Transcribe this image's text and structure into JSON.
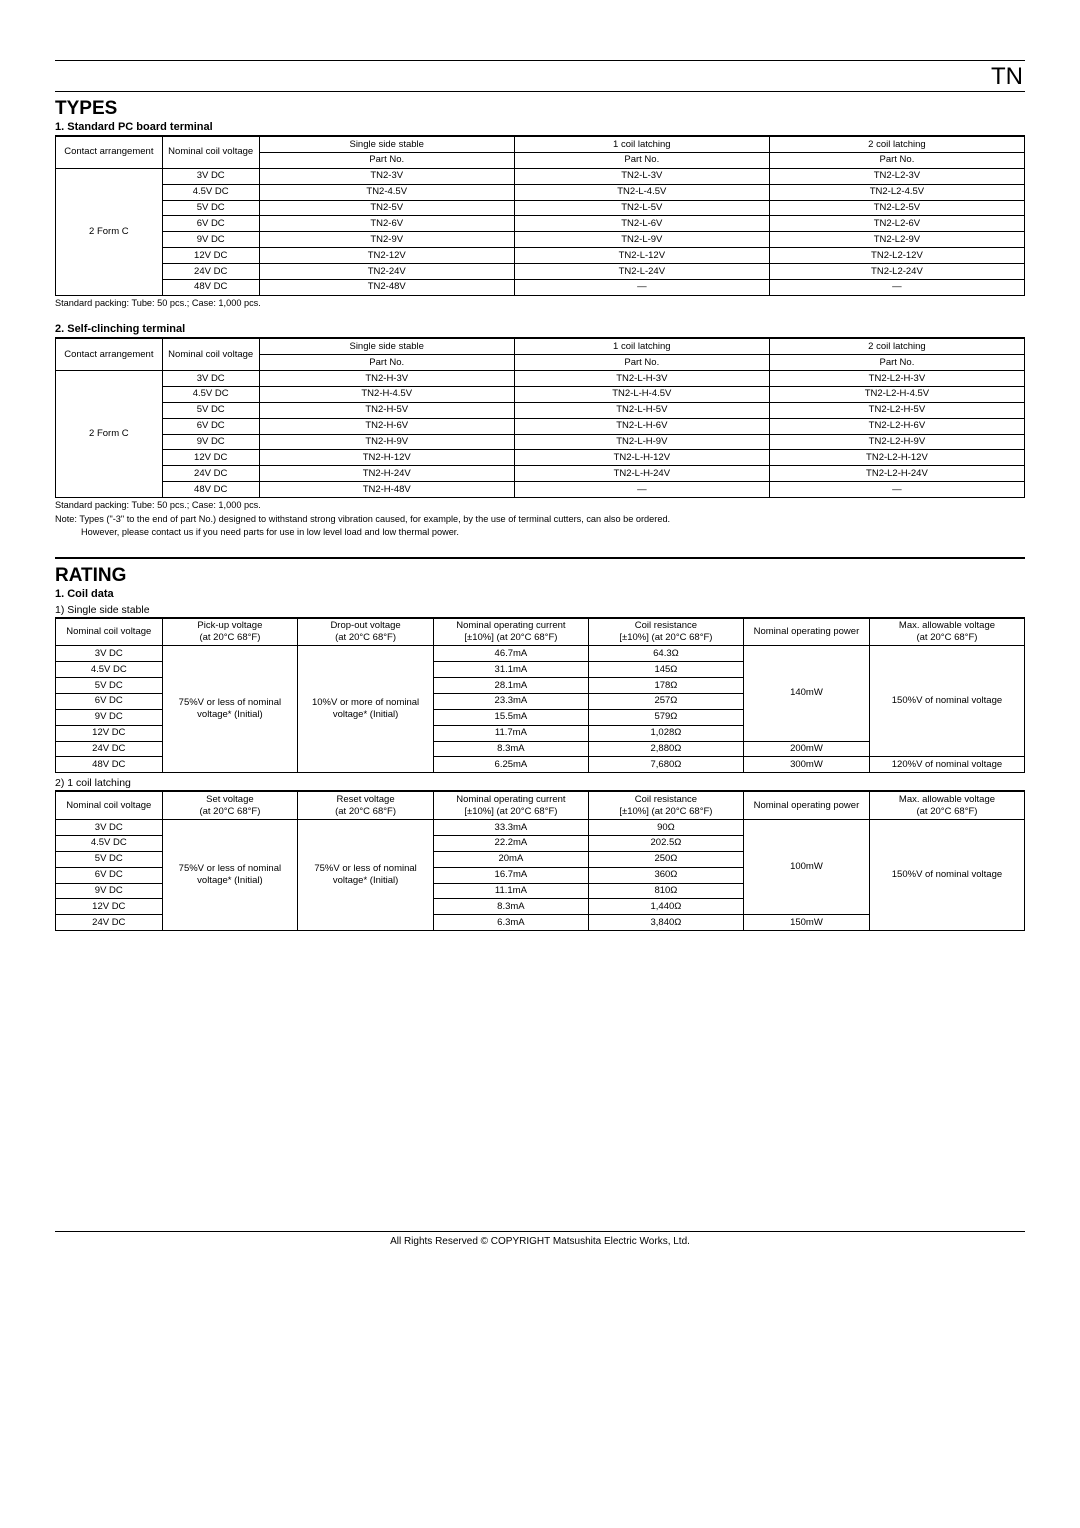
{
  "header": {
    "product": "TN"
  },
  "types": {
    "title": "TYPES",
    "tables": [
      {
        "subtitle": "1. Standard PC board terminal",
        "cols": {
          "arrangement": "Contact arrangement",
          "voltage": "Nominal coil voltage",
          "single": "Single side stable",
          "coil1": "1 coil latching",
          "coil2": "2 coil latching",
          "partno": "Part No."
        },
        "arrangement": "2 Form C",
        "rows": [
          {
            "v": "3V DC",
            "s": "TN2-3V",
            "c1": "TN2-L-3V",
            "c2": "TN2-L2-3V"
          },
          {
            "v": "4.5V DC",
            "s": "TN2-4.5V",
            "c1": "TN2-L-4.5V",
            "c2": "TN2-L2-4.5V"
          },
          {
            "v": "5V DC",
            "s": "TN2-5V",
            "c1": "TN2-L-5V",
            "c2": "TN2-L2-5V"
          },
          {
            "v": "6V DC",
            "s": "TN2-6V",
            "c1": "TN2-L-6V",
            "c2": "TN2-L2-6V"
          },
          {
            "v": "9V DC",
            "s": "TN2-9V",
            "c1": "TN2-L-9V",
            "c2": "TN2-L2-9V"
          },
          {
            "v": "12V DC",
            "s": "TN2-12V",
            "c1": "TN2-L-12V",
            "c2": "TN2-L2-12V"
          },
          {
            "v": "24V DC",
            "s": "TN2-24V",
            "c1": "TN2-L-24V",
            "c2": "TN2-L2-24V"
          },
          {
            "v": "48V DC",
            "s": "TN2-48V",
            "c1": "—",
            "c2": "—"
          }
        ],
        "packing": "Standard packing: Tube: 50 pcs.; Case: 1,000 pcs."
      },
      {
        "subtitle": "2. Self-clinching terminal",
        "cols": {
          "arrangement": "Contact arrangement",
          "voltage": "Nominal coil voltage",
          "single": "Single side stable",
          "coil1": "1 coil latching",
          "coil2": "2 coil latching",
          "partno": "Part No."
        },
        "arrangement": "2 Form C",
        "rows": [
          {
            "v": "3V DC",
            "s": "TN2-H-3V",
            "c1": "TN2-L-H-3V",
            "c2": "TN2-L2-H-3V"
          },
          {
            "v": "4.5V DC",
            "s": "TN2-H-4.5V",
            "c1": "TN2-L-H-4.5V",
            "c2": "TN2-L2-H-4.5V"
          },
          {
            "v": "5V DC",
            "s": "TN2-H-5V",
            "c1": "TN2-L-H-5V",
            "c2": "TN2-L2-H-5V"
          },
          {
            "v": "6V DC",
            "s": "TN2-H-6V",
            "c1": "TN2-L-H-6V",
            "c2": "TN2-L2-H-6V"
          },
          {
            "v": "9V DC",
            "s": "TN2-H-9V",
            "c1": "TN2-L-H-9V",
            "c2": "TN2-L2-H-9V"
          },
          {
            "v": "12V DC",
            "s": "TN2-H-12V",
            "c1": "TN2-L-H-12V",
            "c2": "TN2-L2-H-12V"
          },
          {
            "v": "24V DC",
            "s": "TN2-H-24V",
            "c1": "TN2-L-H-24V",
            "c2": "TN2-L2-H-24V"
          },
          {
            "v": "48V DC",
            "s": "TN2-H-48V",
            "c1": "—",
            "c2": "—"
          }
        ],
        "packing": "Standard packing: Tube: 50 pcs.; Case: 1,000 pcs.",
        "note1": "Note: Types (\"-3\" to the end of part No.) designed to withstand strong vibration caused, for example, by the use of terminal cutters, can also be ordered.",
        "note2": "However, please contact us if you need parts for use in low level load and low thermal power."
      }
    ]
  },
  "rating": {
    "title": "RATING",
    "coil_title": "1. Coil data",
    "stable": {
      "subtitle": "1) Single side stable",
      "headers": {
        "v": "Nominal coil voltage",
        "pickup": "Pick-up voltage\n(at 20°C 68°F)",
        "dropout": "Drop-out voltage\n(at 20°C 68°F)",
        "current": "Nominal operating current\n[±10%] (at 20°C 68°F)",
        "res": "Coil resistance\n[±10%] (at 20°C 68°F)",
        "power": "Nominal operating power",
        "max": "Max. allowable voltage\n(at 20°C 68°F)"
      },
      "pickup_val": "75%V or less of nominal voltage* (Initial)",
      "dropout_val": "10%V or more of nominal voltage* (Initial)",
      "rows": [
        {
          "v": "3V DC",
          "i": "46.7mA",
          "r": "64.3Ω"
        },
        {
          "v": "4.5V DC",
          "i": "31.1mA",
          "r": "145Ω"
        },
        {
          "v": "5V DC",
          "i": "28.1mA",
          "r": "178Ω"
        },
        {
          "v": "6V DC",
          "i": "23.3mA",
          "r": "257Ω"
        },
        {
          "v": "9V DC",
          "i": "15.5mA",
          "r": "579Ω"
        },
        {
          "v": "12V DC",
          "i": "11.7mA",
          "r": "1,028Ω"
        },
        {
          "v": "24V DC",
          "i": "8.3mA",
          "r": "2,880Ω"
        },
        {
          "v": "48V DC",
          "i": "6.25mA",
          "r": "7,680Ω"
        }
      ],
      "power1": "140mW",
      "power2": "200mW",
      "power3": "300mW",
      "max1": "150%V of nominal voltage",
      "max2": "120%V of nominal voltage"
    },
    "latch1": {
      "subtitle": "2) 1 coil latching",
      "headers": {
        "v": "Nominal coil voltage",
        "set": "Set voltage\n(at 20°C 68°F)",
        "reset": "Reset voltage\n(at 20°C 68°F)",
        "current": "Nominal operating current\n[±10%] (at 20°C 68°F)",
        "res": "Coil resistance\n[±10%] (at 20°C 68°F)",
        "power": "Nominal operating power",
        "max": "Max. allowable voltage\n(at 20°C 68°F)"
      },
      "set_val": "75%V or less of nominal voltage* (Initial)",
      "reset_val": "75%V or less of nominal voltage* (Initial)",
      "rows": [
        {
          "v": "3V DC",
          "i": "33.3mA",
          "r": "90Ω"
        },
        {
          "v": "4.5V DC",
          "i": "22.2mA",
          "r": "202.5Ω"
        },
        {
          "v": "5V DC",
          "i": "20mA",
          "r": "250Ω"
        },
        {
          "v": "6V DC",
          "i": "16.7mA",
          "r": "360Ω"
        },
        {
          "v": "9V DC",
          "i": "11.1mA",
          "r": "810Ω"
        },
        {
          "v": "12V DC",
          "i": "8.3mA",
          "r": "1,440Ω"
        },
        {
          "v": "24V DC",
          "i": "6.3mA",
          "r": "3,840Ω"
        }
      ],
      "power1": "100mW",
      "power2": "150mW",
      "max1": "150%V of nominal voltage"
    }
  },
  "footer": "All Rights Reserved © COPYRIGHT Matsushita Electric Works, Ltd."
}
